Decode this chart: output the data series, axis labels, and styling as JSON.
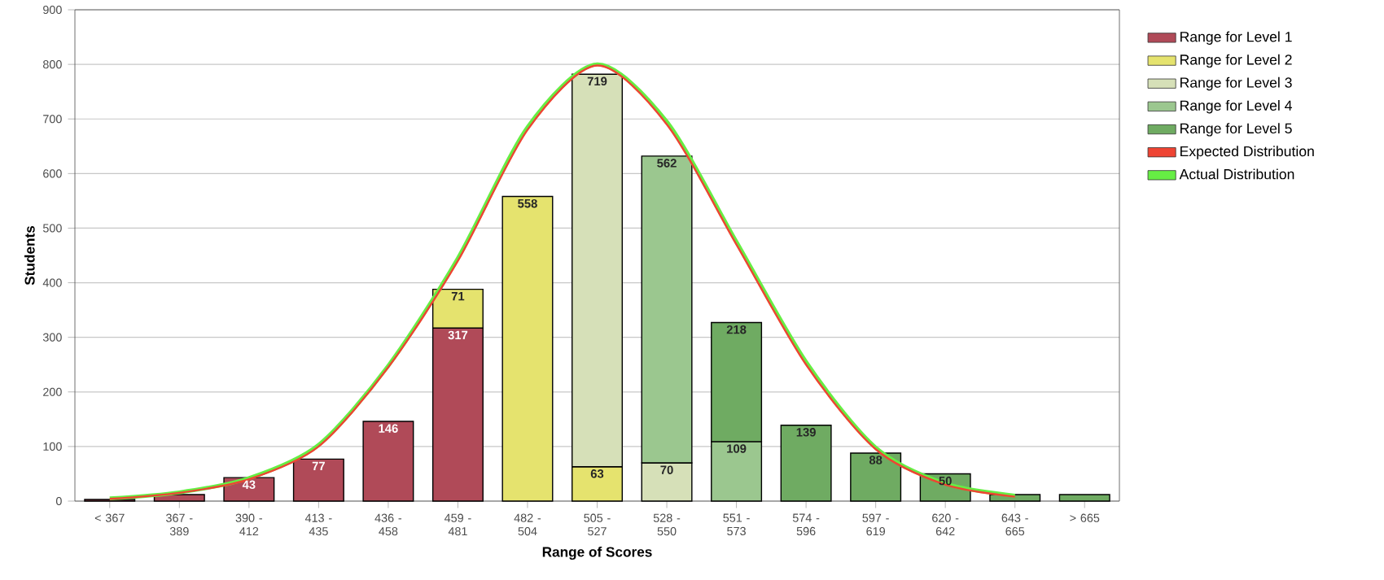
{
  "chart_data": {
    "type": "bar",
    "stacked": true,
    "xlabel": "Range of Scores",
    "ylabel": "Students",
    "categories": [
      "< 367",
      "367 - 389",
      "390 - 412",
      "413 - 435",
      "436 - 458",
      "459 - 481",
      "482 - 504",
      "505 - 527",
      "528 - 550",
      "551 - 573",
      "574 - 596",
      "597 - 619",
      "620 - 642",
      "643 - 665",
      "> 665"
    ],
    "series": [
      {
        "name": "Range for Level 1",
        "color": "#b04a58",
        "values": [
          3,
          12,
          43,
          77,
          146,
          317,
          null,
          null,
          null,
          null,
          null,
          null,
          null,
          null,
          null
        ],
        "value_labels": [
          null,
          null,
          "43",
          "77",
          "146",
          "317",
          null,
          null,
          null,
          null,
          null,
          null,
          null,
          null,
          null
        ]
      },
      {
        "name": "Range for Level 2",
        "color": "#e5e36e",
        "values": [
          null,
          null,
          null,
          null,
          null,
          71,
          558,
          63,
          null,
          null,
          null,
          null,
          null,
          null,
          null
        ],
        "value_labels": [
          null,
          null,
          null,
          null,
          null,
          "71",
          "558",
          "63",
          null,
          null,
          null,
          null,
          null,
          null,
          null
        ]
      },
      {
        "name": "Range for Level 3",
        "color": "#d6e0b8",
        "values": [
          null,
          null,
          null,
          null,
          null,
          null,
          null,
          719,
          70,
          null,
          null,
          null,
          null,
          null,
          null
        ],
        "value_labels": [
          null,
          null,
          null,
          null,
          null,
          null,
          null,
          "719",
          "70",
          null,
          null,
          null,
          null,
          null,
          null
        ]
      },
      {
        "name": "Range for Level 4",
        "color": "#9bc78f",
        "values": [
          null,
          null,
          null,
          null,
          null,
          null,
          null,
          null,
          562,
          109,
          null,
          null,
          null,
          null,
          null
        ],
        "value_labels": [
          null,
          null,
          null,
          null,
          null,
          null,
          null,
          null,
          "562",
          "109",
          null,
          null,
          null,
          null,
          null
        ]
      },
      {
        "name": "Range for Level 5",
        "color": "#6fab62",
        "values": [
          null,
          null,
          null,
          null,
          null,
          null,
          null,
          null,
          null,
          218,
          139,
          88,
          50,
          12,
          12
        ],
        "value_labels": [
          null,
          null,
          null,
          null,
          null,
          null,
          null,
          null,
          null,
          "218",
          "139",
          "88",
          "50",
          null,
          null
        ]
      },
      {
        "name": "Expected Distribution",
        "type": "line",
        "color": "#ee4433",
        "values": [
          4,
          15,
          40,
          100,
          245,
          440,
          680,
          798,
          690,
          470,
          250,
          95,
          30,
          8,
          null
        ]
      },
      {
        "name": "Actual Distribution",
        "type": "line",
        "color": "#66ee44",
        "values": [
          5,
          16,
          42,
          103,
          248,
          445,
          685,
          800,
          695,
          475,
          255,
          98,
          32,
          10,
          null
        ]
      }
    ],
    "ylim": [
      0,
      900
    ],
    "yticks": [
      0,
      100,
      200,
      300,
      400,
      500,
      600,
      700,
      800,
      900
    ],
    "grid": "y",
    "legend": "top right",
    "marker": "none"
  }
}
